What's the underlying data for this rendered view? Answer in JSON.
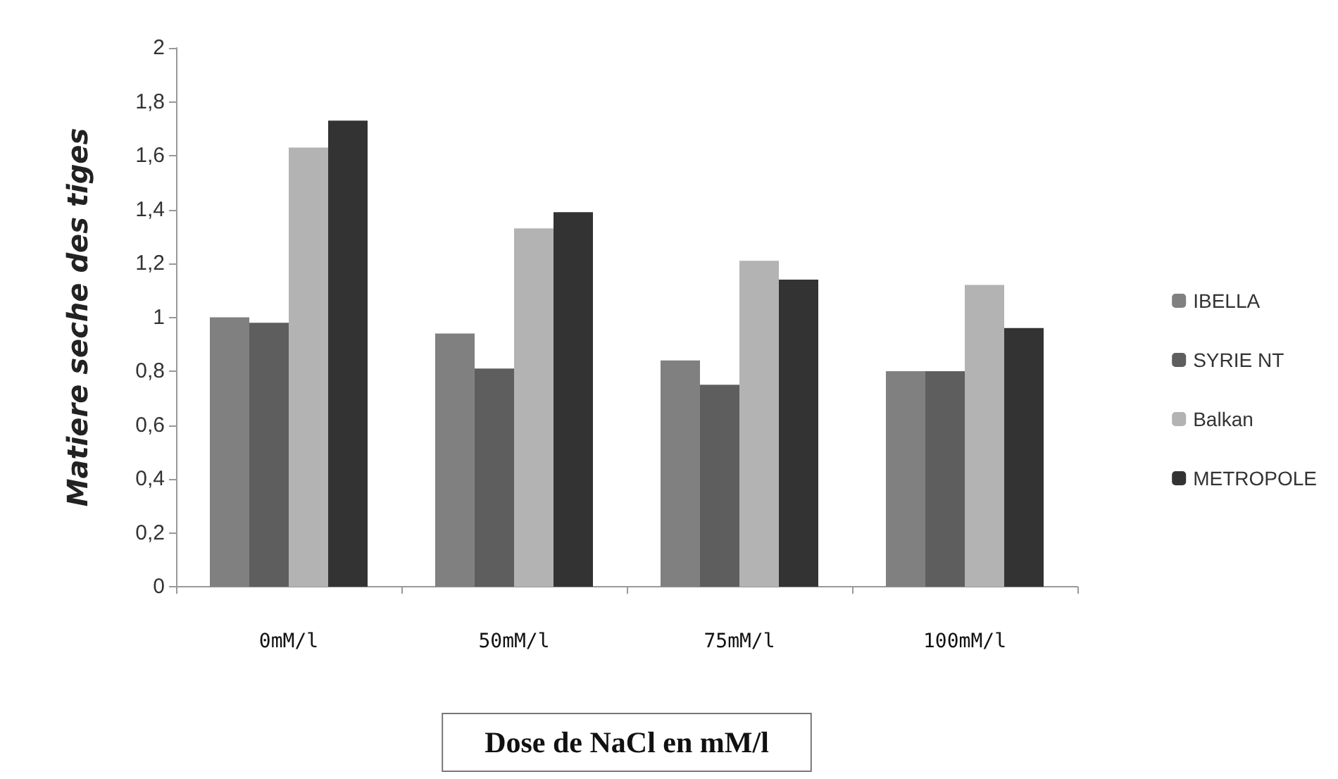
{
  "chart_data": {
    "type": "bar",
    "xlabel": "Dose de NaCl en mM/l",
    "ylabel": "Matiere seche des tiges",
    "categories": [
      "0mM/l",
      "50mM/l",
      "75mM/l",
      "100mM/l"
    ],
    "series": [
      {
        "name": "IBELLA",
        "color": "#808080",
        "values": [
          1.0,
          0.94,
          0.84,
          0.8
        ]
      },
      {
        "name": "SYRIE NT",
        "color": "#5e5e5e",
        "values": [
          0.98,
          0.81,
          0.75,
          0.8
        ]
      },
      {
        "name": "Balkan",
        "color": "#b3b3b3",
        "values": [
          1.63,
          1.33,
          1.21,
          1.12
        ]
      },
      {
        "name": "METROPOLE",
        "color": "#333333",
        "values": [
          1.73,
          1.39,
          1.14,
          0.96
        ]
      }
    ],
    "ylim": [
      0,
      2
    ],
    "yticks": [
      0,
      {
        "value": 0.2,
        "label": "0,2"
      },
      {
        "value": 0.4,
        "label": "0,4"
      },
      {
        "value": 0.6,
        "label": "0,6"
      },
      {
        "value": 0.8,
        "label": "0,8"
      },
      1,
      {
        "value": 1.2,
        "label": "1,2"
      },
      {
        "value": 1.4,
        "label": "1,4"
      },
      {
        "value": 1.6,
        "label": "1,6"
      },
      {
        "value": 1.8,
        "label": "1,8"
      },
      2
    ],
    "grid": false,
    "legend": "right"
  }
}
